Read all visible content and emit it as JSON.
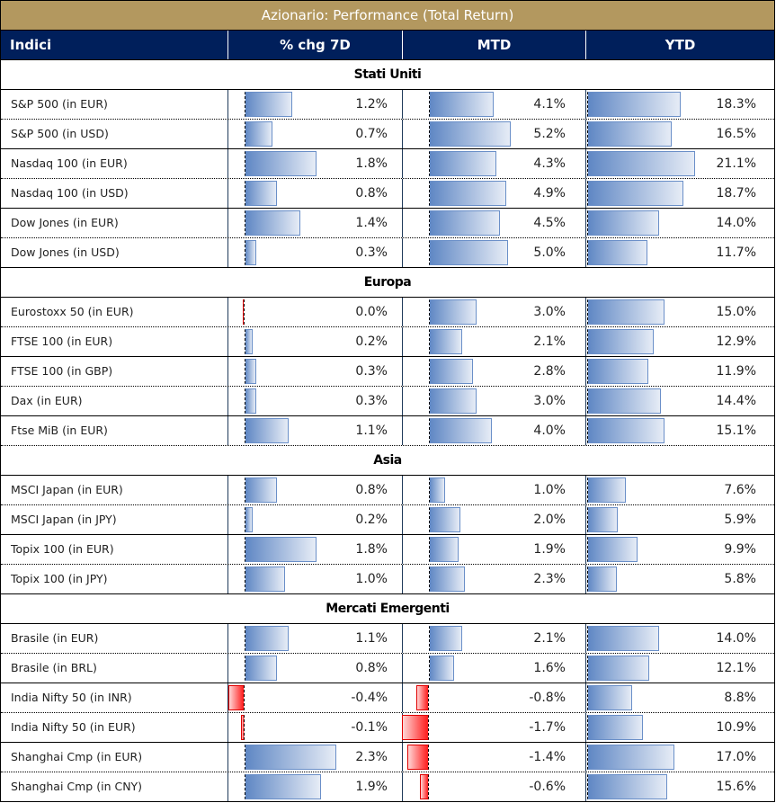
{
  "title": "Azionario: Performance (Total Return)",
  "headers": [
    "Indici",
    "% chg 7D",
    "MTD",
    "YTD"
  ],
  "groups": [
    {
      "name": "Stati Uniti",
      "rows": [
        {
          "name": "S&P 500 (in EUR)",
          "d7": 1.2,
          "mtd": 4.1,
          "ytd": 18.3
        },
        {
          "name": "S&P 500 (in USD)",
          "d7": 0.7,
          "mtd": 5.2,
          "ytd": 16.5
        },
        {
          "name": "Nasdaq 100 (in EUR)",
          "d7": 1.8,
          "mtd": 4.3,
          "ytd": 21.1
        },
        {
          "name": "Nasdaq 100 (in USD)",
          "d7": 0.8,
          "mtd": 4.9,
          "ytd": 18.7
        },
        {
          "name": "Dow Jones (in EUR)",
          "d7": 1.4,
          "mtd": 4.5,
          "ytd": 14.0
        },
        {
          "name": "Dow Jones (in USD)",
          "d7": 0.3,
          "mtd": 5.0,
          "ytd": 11.7
        }
      ]
    },
    {
      "name": "Europa",
      "rows": [
        {
          "name": "Eurostoxx 50 (in EUR)",
          "d7": 0.0,
          "mtd": 3.0,
          "ytd": 15.0
        },
        {
          "name": "FTSE 100 (in EUR)",
          "d7": 0.2,
          "mtd": 2.1,
          "ytd": 12.9
        },
        {
          "name": "FTSE 100 (in GBP)",
          "d7": 0.3,
          "mtd": 2.8,
          "ytd": 11.9
        },
        {
          "name": "Dax (in EUR)",
          "d7": 0.3,
          "mtd": 3.0,
          "ytd": 14.4
        },
        {
          "name": "Ftse MiB (in EUR)",
          "d7": 1.1,
          "mtd": 4.0,
          "ytd": 15.1
        }
      ]
    },
    {
      "name": "Asia",
      "rows": [
        {
          "name": "MSCI Japan (in EUR)",
          "d7": 0.8,
          "mtd": 1.0,
          "ytd": 7.6
        },
        {
          "name": "MSCI Japan (in JPY)",
          "d7": 0.2,
          "mtd": 2.0,
          "ytd": 5.9
        },
        {
          "name": "Topix 100 (in EUR)",
          "d7": 1.8,
          "mtd": 1.9,
          "ytd": 9.9
        },
        {
          "name": "Topix 100 (in JPY)",
          "d7": 1.0,
          "mtd": 2.3,
          "ytd": 5.8
        }
      ]
    },
    {
      "name": "Mercati Emergenti",
      "rows": [
        {
          "name": "Brasile (in EUR)",
          "d7": 1.1,
          "mtd": 2.1,
          "ytd": 14.0
        },
        {
          "name": "Brasile (in BRL)",
          "d7": 0.8,
          "mtd": 1.6,
          "ytd": 12.1
        },
        {
          "name": "India Nifty 50 (in INR)",
          "d7": -0.4,
          "mtd": -0.8,
          "ytd": 8.8
        },
        {
          "name": "India Nifty 50 (in EUR)",
          "d7": -0.1,
          "mtd": -1.7,
          "ytd": 10.9
        },
        {
          "name": "Shanghai Cmp (in EUR)",
          "d7": 2.3,
          "mtd": -1.4,
          "ytd": 17.0
        },
        {
          "name": "Shanghai Cmp (in CNY)",
          "d7": 1.9,
          "mtd": -0.6,
          "ytd": 15.6
        }
      ]
    }
  ],
  "colors": {
    "title_bg": "#b3985f",
    "header_bg": "#001f5b",
    "positive_bar": "#5f87c4",
    "negative_bar": "#ff1a1a"
  }
}
